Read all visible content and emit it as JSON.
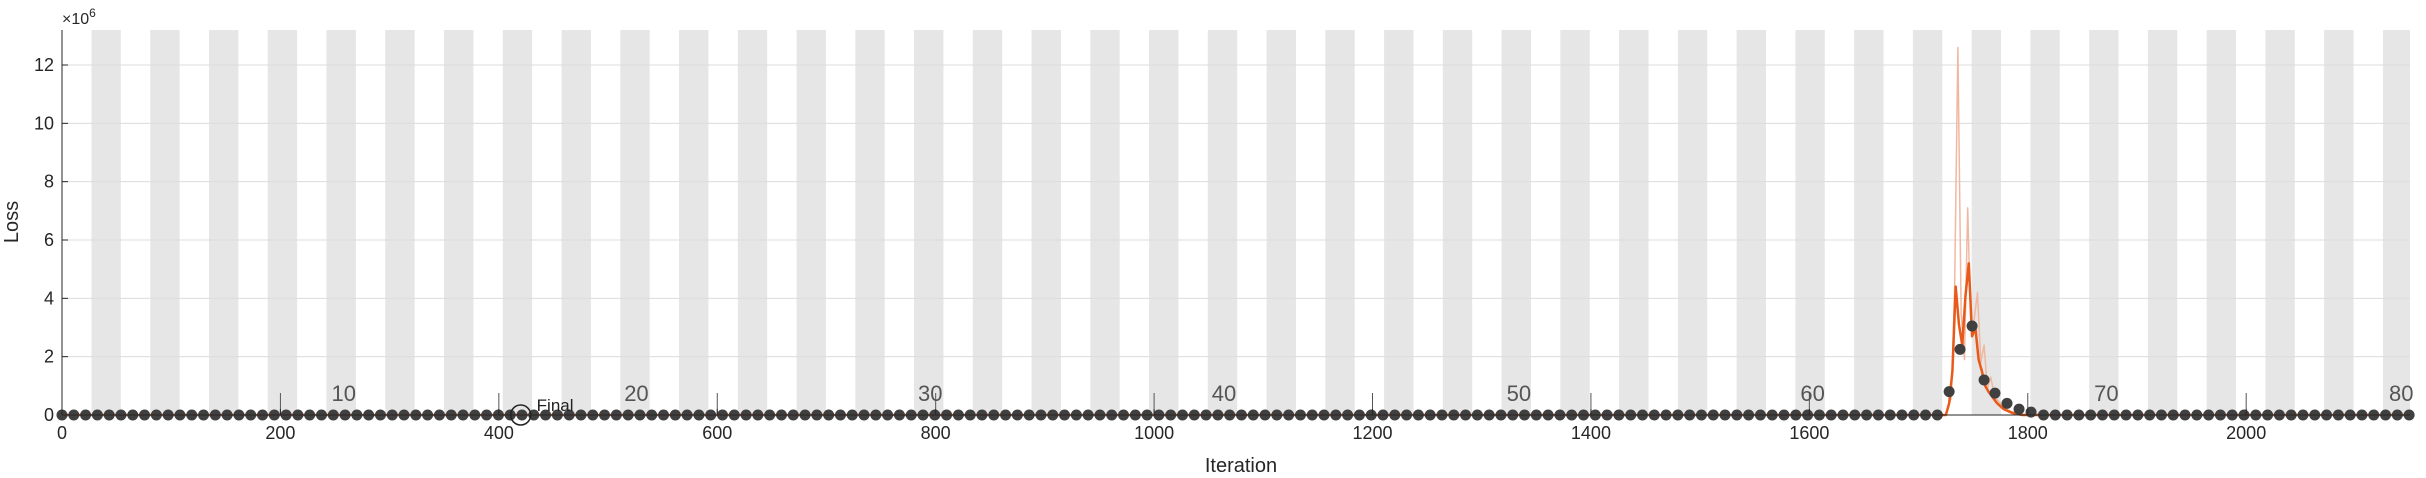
{
  "chart_data": {
    "type": "line",
    "xlabel": "Iteration",
    "ylabel": "Loss",
    "y_exponent_label": "×10",
    "y_exponent_power": "6",
    "xlim": [
      0,
      2150
    ],
    "ylim": [
      0,
      13.2
    ],
    "y_scale": 1000000,
    "grid": "horizontal",
    "x_ticks": [
      0,
      200,
      400,
      600,
      800,
      1000,
      1200,
      1400,
      1600,
      1800,
      2000
    ],
    "y_ticks": [
      0,
      2,
      4,
      6,
      8,
      10,
      12
    ],
    "epoch_labels": [
      {
        "x": 258,
        "text": "10"
      },
      {
        "x": 526,
        "text": "20"
      },
      {
        "x": 795,
        "text": "30"
      },
      {
        "x": 1064,
        "text": "40"
      },
      {
        "x": 1334,
        "text": "50"
      },
      {
        "x": 1603,
        "text": "60"
      },
      {
        "x": 1872,
        "text": "70"
      },
      {
        "x": 2142,
        "text": "80"
      }
    ],
    "epoch_ticks": [
      200,
      400,
      600,
      800,
      1000,
      1200,
      1400,
      1600,
      1800,
      2000
    ],
    "epoch_band_start": 27,
    "epoch_length": 26.9,
    "final_marker": {
      "x": 420,
      "y": 0,
      "label": "Final"
    },
    "colors": {
      "band": "#e6e6e6",
      "raw_loss": "#f0b8a0",
      "smoothed_loss": "#e8591a",
      "markers": "#404040",
      "grid": "#dcdcdc",
      "axis": "#262626"
    },
    "series": [
      {
        "role": "raw-loss",
        "x": [
          0,
          1725,
          1730,
          1733,
          1736,
          1739,
          1742,
          1745,
          1748,
          1751,
          1754,
          1757,
          1760,
          1763,
          1766,
          1770,
          1775,
          1780,
          1790,
          1800,
          2150
        ],
        "y": [
          0,
          0,
          0.6,
          4.3,
          12.6,
          3.5,
          1.9,
          7.1,
          2.9,
          3.3,
          4.2,
          1.8,
          2.4,
          0.9,
          1.3,
          0.6,
          0.4,
          0.2,
          0.05,
          0,
          0
        ]
      },
      {
        "role": "smoothed-loss",
        "x": [
          0,
          1725,
          1728,
          1731,
          1734,
          1737,
          1740,
          1743,
          1746,
          1749,
          1752,
          1755,
          1758,
          1761,
          1764,
          1768,
          1772,
          1778,
          1785,
          1795,
          2150
        ],
        "y": [
          0,
          0,
          0.4,
          1.5,
          4.4,
          3.1,
          2.4,
          4.1,
          5.2,
          2.7,
          3.0,
          1.9,
          1.5,
          1.0,
          0.8,
          0.6,
          0.4,
          0.2,
          0.08,
          0,
          0
        ]
      },
      {
        "role": "epoch-markers",
        "x_start": 0,
        "x_step": 10.8,
        "count": 200,
        "overrides": [
          {
            "x": 1728,
            "y": 0.8
          },
          {
            "x": 1738,
            "y": 2.25
          },
          {
            "x": 1749,
            "y": 3.05
          },
          {
            "x": 1760,
            "y": 1.2
          },
          {
            "x": 1770,
            "y": 0.75
          },
          {
            "x": 1781,
            "y": 0.4
          },
          {
            "x": 1792,
            "y": 0.2
          },
          {
            "x": 1803,
            "y": 0.1
          }
        ]
      }
    ]
  }
}
